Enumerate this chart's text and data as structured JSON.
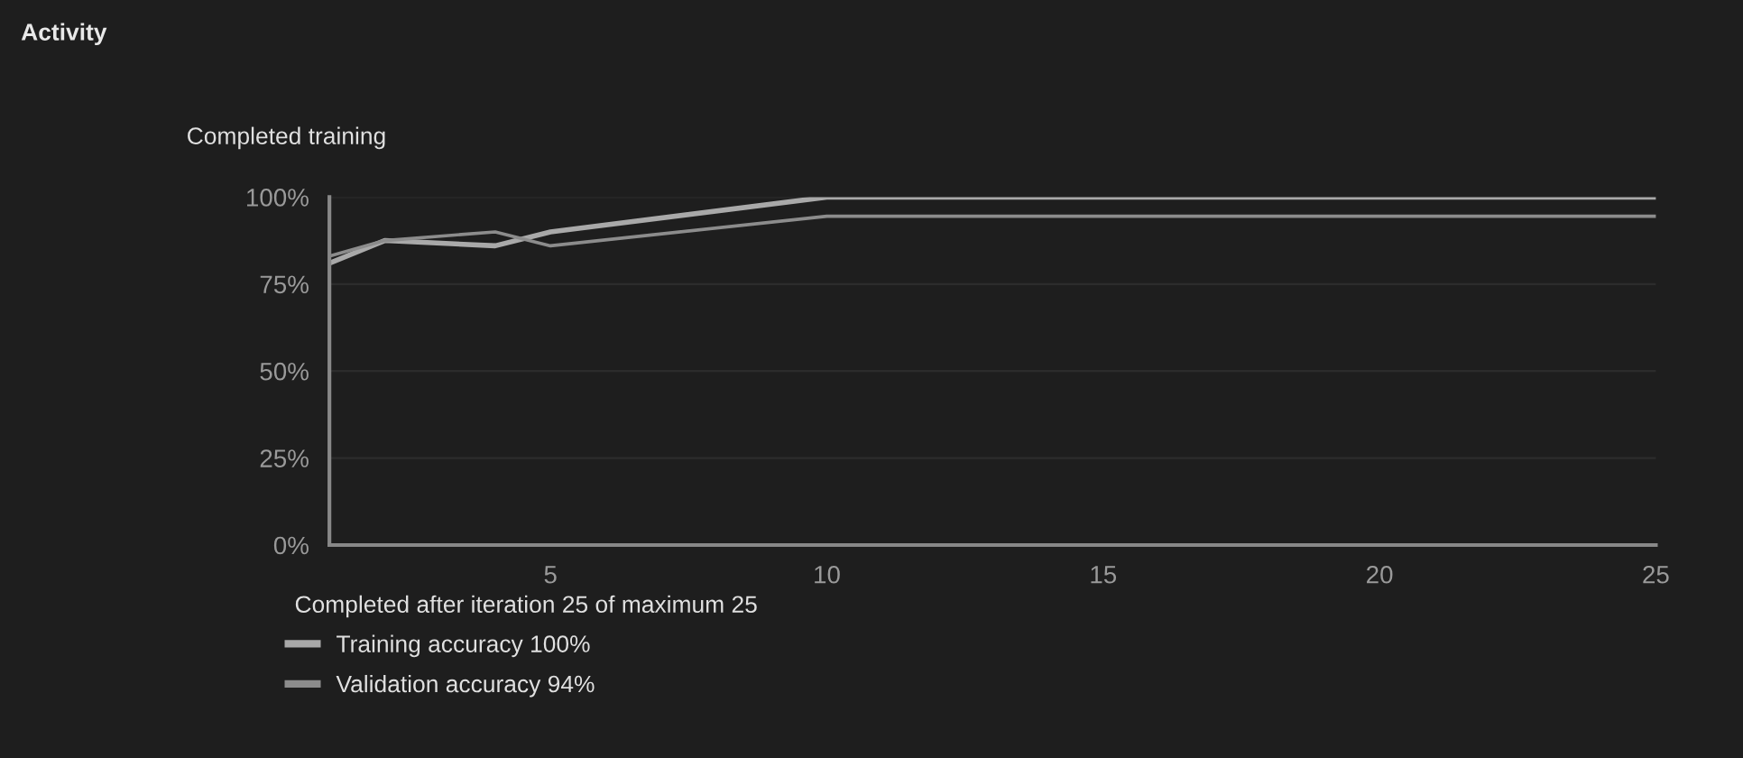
{
  "chart_data": {
    "type": "line",
    "title": "Activity",
    "subtitle": "Completed training",
    "annotations": [
      "Completed after iteration 25 of maximum 25"
    ],
    "x": [
      1,
      2,
      4,
      5,
      10,
      25
    ],
    "series": [
      {
        "name": "Training accuracy 100%",
        "color": "#a9a9a9",
        "values": [
          81,
          87.5,
          86,
          90,
          100,
          100
        ]
      },
      {
        "name": "Validation accuracy 94%",
        "color": "#8c8c8c",
        "values": [
          83,
          87.5,
          90,
          86,
          94.5,
          94.5
        ]
      }
    ],
    "xlim": [
      1,
      25
    ],
    "xticks": [
      5,
      10,
      15,
      20,
      25
    ],
    "ylim": [
      0,
      100
    ],
    "yticks": [
      {
        "value": 0,
        "label": "0%"
      },
      {
        "value": 25,
        "label": "25%"
      },
      {
        "value": 50,
        "label": "50%"
      },
      {
        "value": 75,
        "label": "75%"
      },
      {
        "value": 100,
        "label": "100%"
      }
    ],
    "grid": "y",
    "legend": "bottom left",
    "line_style": "solid",
    "marker": "none"
  }
}
